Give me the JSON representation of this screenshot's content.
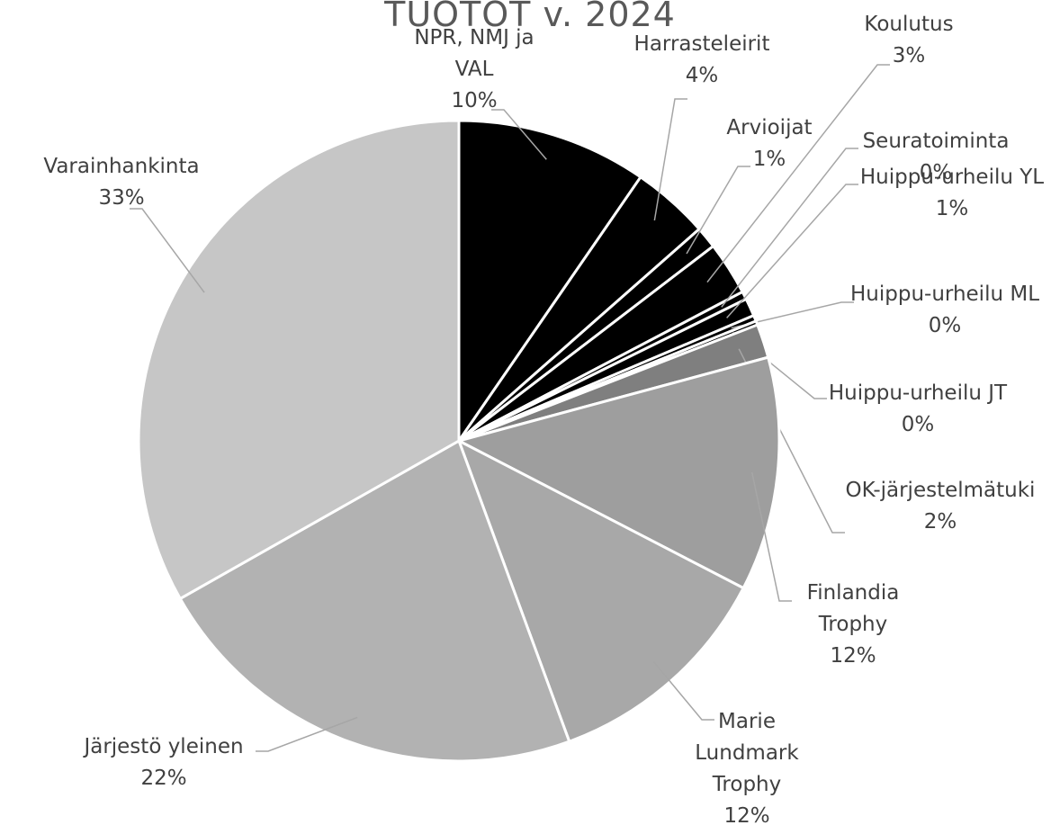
{
  "chart_data": {
    "type": "pie",
    "title": "TUOTOT v. 2024",
    "categories": [
      "NPR, NMJ ja VAL",
      "Harrasteleirit",
      "Arvioijat",
      "Koulutus",
      "Seuratoiminta",
      "Huippu-urheilu YL",
      "Huippu-urheilu ML",
      "Huippu-urheilu JT",
      "OK-järjestelmätuki",
      "Finlandia Trophy",
      "Marie Lundmark Trophy",
      "Järjestö yleinen",
      "Varainhankinta"
    ],
    "values": [
      9.6,
      3.9,
      1.1,
      2.7,
      0.4,
      0.9,
      0.3,
      0.2,
      1.7,
      11.8,
      11.8,
      22.4,
      33.2
    ],
    "value_labels": [
      "10%",
      "4%",
      "1%",
      "3%",
      "0%",
      "1%",
      "0%",
      "0%",
      "2%",
      "12%",
      "12%",
      "22%",
      "33%"
    ],
    "colors": [
      "#000000",
      "#000000",
      "#000000",
      "#000000",
      "#000000",
      "#000000",
      "#000000",
      "#000000",
      "#7f7f7f",
      "#9e9e9e",
      "#a8a8a8",
      "#b2b2b2",
      "#c6c6c6"
    ]
  }
}
